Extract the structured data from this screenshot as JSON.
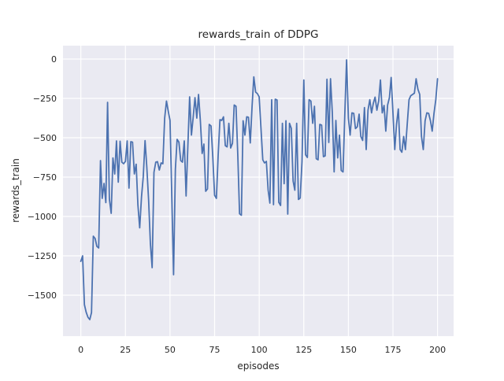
{
  "chart_data": {
    "type": "line",
    "title": "rewards_train of DDPG",
    "xlabel": "episodes",
    "ylabel": "rewards_train",
    "series_name": "rewards_train",
    "legend": false,
    "grid": true,
    "style": "seaborn-darkgrid",
    "xlim": [
      -10,
      209
    ],
    "ylim": [
      -1760,
      85
    ],
    "x_ticks": [
      0,
      25,
      50,
      75,
      100,
      125,
      150,
      175,
      200
    ],
    "x_tick_labels": [
      "0",
      "25",
      "50",
      "75",
      "100",
      "125",
      "150",
      "175",
      "200"
    ],
    "y_ticks": [
      0,
      -250,
      -500,
      -750,
      -1000,
      -1250,
      -1500
    ],
    "y_tick_labels": [
      "0",
      "−250",
      "−500",
      "−750",
      "−1000",
      "−1250",
      "−1500"
    ],
    "x_start": 0,
    "x_step": 1,
    "values": [
      -1285,
      -1250,
      -1560,
      -1608,
      -1640,
      -1655,
      -1610,
      -1125,
      -1140,
      -1190,
      -1200,
      -645,
      -885,
      -790,
      -912,
      -275,
      -890,
      -980,
      -628,
      -730,
      -520,
      -782,
      -522,
      -655,
      -665,
      -650,
      -520,
      -820,
      -525,
      -528,
      -730,
      -668,
      -925,
      -1072,
      -875,
      -748,
      -518,
      -685,
      -895,
      -1175,
      -1325,
      -720,
      -655,
      -652,
      -705,
      -660,
      -665,
      -375,
      -267,
      -330,
      -390,
      -883,
      -1370,
      -700,
      -510,
      -528,
      -645,
      -655,
      -520,
      -870,
      -560,
      -240,
      -483,
      -370,
      -245,
      -375,
      -225,
      -390,
      -600,
      -540,
      -840,
      -825,
      -415,
      -425,
      -620,
      -865,
      -885,
      -615,
      -385,
      -390,
      -367,
      -550,
      -558,
      -408,
      -565,
      -535,
      -292,
      -300,
      -617,
      -983,
      -992,
      -392,
      -483,
      -367,
      -370,
      -533,
      -300,
      -113,
      -210,
      -220,
      -240,
      -440,
      -640,
      -660,
      -650,
      -833,
      -915,
      -258,
      -925,
      -255,
      -260,
      -910,
      -930,
      -408,
      -792,
      -392,
      -985,
      -408,
      -440,
      -775,
      -833,
      -408,
      -892,
      -883,
      -650,
      -133,
      -608,
      -625,
      -258,
      -267,
      -408,
      -300,
      -633,
      -640,
      -415,
      -420,
      -620,
      -615,
      -128,
      -530,
      -125,
      -342,
      -717,
      -390,
      -628,
      -483,
      -708,
      -717,
      -358,
      -5,
      -375,
      -483,
      -342,
      -345,
      -442,
      -430,
      -350,
      -492,
      -517,
      -308,
      -575,
      -325,
      -258,
      -342,
      -280,
      -242,
      -325,
      -265,
      -133,
      -342,
      -295,
      -458,
      -292,
      -245,
      -117,
      -342,
      -575,
      -415,
      -317,
      -575,
      -592,
      -492,
      -575,
      -415,
      -258,
      -233,
      -225,
      -217,
      -125,
      -192,
      -225,
      -492,
      -575,
      -392,
      -342,
      -345,
      -392,
      -458,
      -345,
      -258,
      -125
    ],
    "colors": {
      "line": "#4c72b0",
      "axes_background": "#eaeaf2",
      "gridline": "#ffffff",
      "figure_background": "#ffffff",
      "text": "#262626"
    }
  }
}
